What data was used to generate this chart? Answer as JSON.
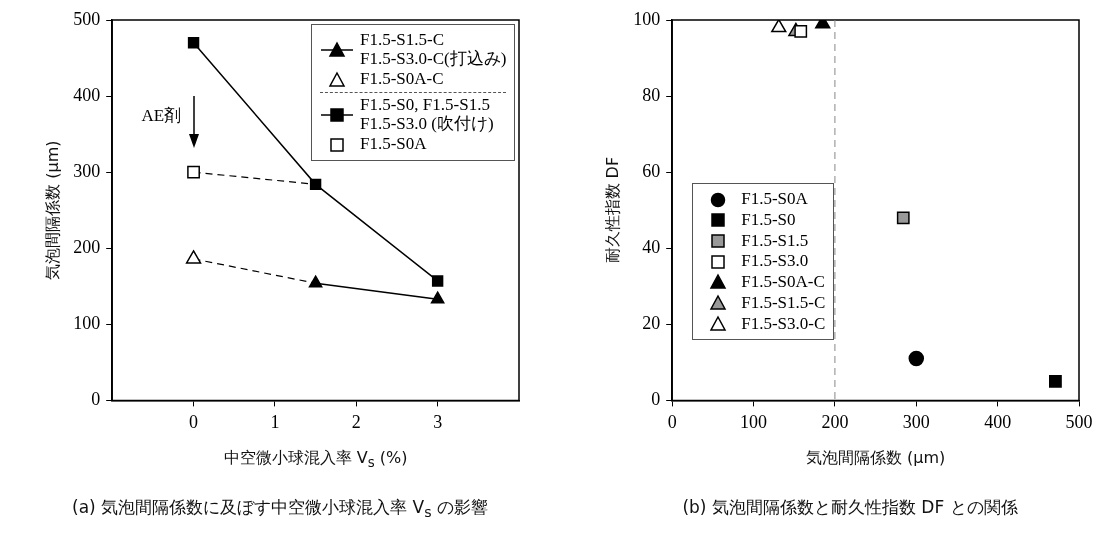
{
  "chart_data": [
    {
      "type": "line",
      "title": "(a) 気泡間隔係数に及ぼす中空微小球混入率 V$_{s}$ の影響",
      "xlabel": "中空微小球混入率 V$_{s}$ (%)",
      "ylabel": "気泡間隔係数 (μm)",
      "xlim": [
        -1,
        4
      ],
      "xticks": [
        0,
        1,
        2,
        3
      ],
      "ylim": [
        0,
        500
      ],
      "yticks": [
        0,
        100,
        200,
        300,
        400,
        500
      ],
      "grid": false,
      "legend": "top right",
      "annotations": [
        "AE剤"
      ],
      "series": [
        {
          "color": "#000000",
          "line_style": "dashed",
          "x": [
            0,
            1.5
          ],
          "values": [
            186,
            154
          ]
        },
        {
          "color": "#000000",
          "line_style": "dashed",
          "x": [
            0,
            1.5
          ],
          "values": [
            300,
            284
          ]
        },
        {
          "name": "F1.5-S1.5-C\nF1.5-S3.0-C(打込み)",
          "color": "#000000",
          "marker": "triangle",
          "line_style": "solid",
          "x": [
            1.5,
            3
          ],
          "values": [
            154,
            133
          ]
        },
        {
          "name": "F1.5-S0A-C",
          "type": "scatter",
          "color": "#ffffff",
          "marker": "triangle",
          "x": [
            0
          ],
          "values": [
            186
          ]
        },
        {
          "name": "F1.5-S0, F1.5-S1.5\nF1.5-S3.0 (吹付け)",
          "color": "#000000",
          "marker": "square",
          "line_style": "solid",
          "x": [
            0,
            1.5,
            3
          ],
          "values": [
            470,
            284,
            157
          ]
        },
        {
          "name": "F1.5-S0A",
          "type": "scatter",
          "color": "#ffffff",
          "marker": "square",
          "x": [
            0
          ],
          "values": [
            300
          ]
        }
      ]
    },
    {
      "type": "scatter",
      "title": "(b) 気泡間隔係数と耐久性指数 DF との関係",
      "xlabel": "気泡間隔係数 (μm)",
      "ylabel": "耐久性指数 DF",
      "xlim": [
        0,
        500
      ],
      "xticks": [
        0,
        100,
        200,
        300,
        400,
        500
      ],
      "ylim": [
        0,
        100
      ],
      "yticks": [
        0,
        20,
        40,
        60,
        80,
        100
      ],
      "grid": false,
      "legend": "bottom left",
      "ref_lines": [
        {
          "axis": "x",
          "value": 200,
          "color": "#888888",
          "line_style": "dashed"
        }
      ],
      "series": [
        {
          "name": "F1.5-S0A",
          "color": "#000000",
          "marker": "circle",
          "x": [
            300
          ],
          "values": [
            11
          ]
        },
        {
          "name": "F1.5-S0",
          "color": "#000000",
          "marker": "square",
          "x": [
            471
          ],
          "values": [
            5
          ]
        },
        {
          "name": "F1.5-S1.5",
          "color": "#999999",
          "marker": "square",
          "x": [
            284
          ],
          "values": [
            48
          ]
        },
        {
          "name": "F1.5-S3.0",
          "color": "#ffffff",
          "marker": "square",
          "x": [
            158
          ],
          "values": [
            97
          ]
        },
        {
          "name": "F1.5-S0A-C",
          "color": "#000000",
          "marker": "triangle",
          "x": [
            185
          ],
          "values": [
            99
          ]
        },
        {
          "name": "F1.5-S1.5-C",
          "color": "#999999",
          "marker": "triangle",
          "x": [
            152
          ],
          "values": [
            97
          ]
        },
        {
          "name": "F1.5-S3.0-C",
          "color": "#ffffff",
          "marker": "triangle",
          "x": [
            131
          ],
          "values": [
            98
          ]
        }
      ]
    }
  ]
}
